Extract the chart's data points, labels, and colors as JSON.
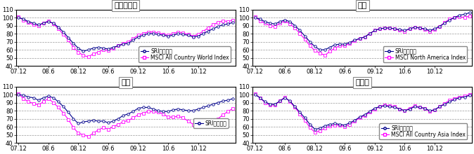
{
  "panels": [
    {
      "title": "グローバル",
      "legend1": "SRIファンド",
      "legend2": "MSCI All Country World Index",
      "ylim": [
        40,
        110
      ],
      "yticks": [
        40,
        50,
        60,
        70,
        80,
        90,
        100,
        110
      ],
      "sri": [
        100,
        98,
        95,
        93,
        91,
        93,
        95,
        93,
        88,
        82,
        75,
        68,
        62,
        58,
        60,
        62,
        63,
        62,
        61,
        63,
        65,
        67,
        68,
        72,
        76,
        78,
        80,
        80,
        79,
        78,
        77,
        78,
        80,
        79,
        78,
        76,
        77,
        80,
        83,
        86,
        89,
        91,
        92,
        94
      ],
      "msci": [
        101,
        97,
        94,
        91,
        90,
        93,
        96,
        92,
        86,
        79,
        72,
        63,
        57,
        53,
        51,
        55,
        57,
        60,
        59,
        62,
        65,
        68,
        70,
        74,
        78,
        80,
        82,
        82,
        81,
        79,
        78,
        80,
        82,
        81,
        79,
        77,
        79,
        83,
        87,
        91,
        94,
        96,
        95,
        97
      ],
      "legend_loc": "lower center",
      "legend_inside": true
    },
    {
      "title": "北米",
      "legend1": "SRIファンド",
      "legend2": "MSCI North America Index",
      "ylim": [
        40,
        110
      ],
      "yticks": [
        40,
        50,
        60,
        70,
        80,
        90,
        100,
        110
      ],
      "sri": [
        100,
        98,
        95,
        93,
        92,
        95,
        97,
        95,
        90,
        84,
        77,
        70,
        64,
        60,
        60,
        63,
        66,
        67,
        67,
        69,
        72,
        74,
        76,
        80,
        84,
        86,
        87,
        87,
        86,
        85,
        84,
        86,
        88,
        87,
        86,
        84,
        86,
        89,
        93,
        97,
        100,
        103,
        104,
        106
      ],
      "msci": [
        101,
        96,
        93,
        90,
        89,
        93,
        96,
        92,
        87,
        80,
        73,
        65,
        59,
        56,
        53,
        58,
        62,
        65,
        65,
        68,
        71,
        74,
        76,
        80,
        84,
        86,
        87,
        87,
        86,
        84,
        83,
        86,
        88,
        87,
        85,
        83,
        85,
        89,
        94,
        98,
        100,
        101,
        100,
        102
      ],
      "legend_loc": "lower center",
      "legend_inside": true
    },
    {
      "title": "欧州",
      "legend1": "SRIファンド",
      "legend2": null,
      "ylim": [
        40,
        110
      ],
      "yticks": [
        40,
        50,
        60,
        70,
        80,
        90,
        100,
        110
      ],
      "sri": [
        100,
        99,
        97,
        96,
        93,
        96,
        98,
        96,
        91,
        85,
        78,
        70,
        64,
        66,
        67,
        68,
        67,
        67,
        65,
        67,
        70,
        74,
        76,
        79,
        83,
        84,
        84,
        82,
        80,
        79,
        79,
        81,
        82,
        81,
        80,
        80,
        82,
        84,
        86,
        88,
        90,
        92,
        93,
        95
      ],
      "msci": [
        101,
        95,
        91,
        89,
        87,
        91,
        95,
        90,
        84,
        77,
        69,
        59,
        52,
        50,
        48,
        52,
        56,
        59,
        57,
        60,
        63,
        66,
        68,
        71,
        75,
        77,
        79,
        79,
        78,
        76,
        72,
        72,
        73,
        71,
        67,
        63,
        62,
        65,
        67,
        68,
        70,
        75,
        79,
        83
      ],
      "legend_loc": "lower right",
      "legend_inside": true
    },
    {
      "title": "アジア",
      "legend1": "SRIファンド",
      "legend2": "MSCI All Country Asia Index",
      "ylim": [
        40,
        110
      ],
      "yticks": [
        40,
        50,
        60,
        70,
        80,
        90,
        100,
        110
      ],
      "sri": [
        100,
        96,
        91,
        88,
        88,
        92,
        96,
        92,
        85,
        78,
        71,
        63,
        57,
        58,
        61,
        63,
        64,
        63,
        62,
        65,
        68,
        72,
        75,
        79,
        83,
        85,
        86,
        85,
        84,
        82,
        80,
        82,
        85,
        84,
        83,
        80,
        81,
        85,
        88,
        91,
        94,
        96,
        97,
        99
      ],
      "msci": [
        101,
        96,
        90,
        87,
        87,
        92,
        97,
        91,
        84,
        76,
        68,
        59,
        53,
        55,
        58,
        61,
        62,
        62,
        60,
        63,
        67,
        71,
        74,
        78,
        82,
        85,
        87,
        86,
        85,
        82,
        80,
        83,
        86,
        84,
        83,
        79,
        81,
        85,
        89,
        93,
        95,
        97,
        98,
        100
      ],
      "legend_loc": "lower center",
      "legend_inside": true
    }
  ],
  "xtick_labels": [
    "07.12",
    "08.6",
    "08.12",
    "09.6",
    "09.12",
    "10.6",
    "10.12"
  ],
  "xtick_positions": [
    0,
    6,
    12,
    18,
    24,
    30,
    36
  ],
  "color_sri": "#00008B",
  "color_msci": "#FF00FF",
  "marker_sri": "o",
  "marker_msci": "s",
  "markersize": 2.5,
  "linewidth": 0.8,
  "grid_color": "#999999",
  "grid_style": "--",
  "title_fontsize": 8,
  "tick_fontsize": 6,
  "legend_fontsize": 5.5,
  "fig_width": 6.74,
  "fig_height": 2.2
}
